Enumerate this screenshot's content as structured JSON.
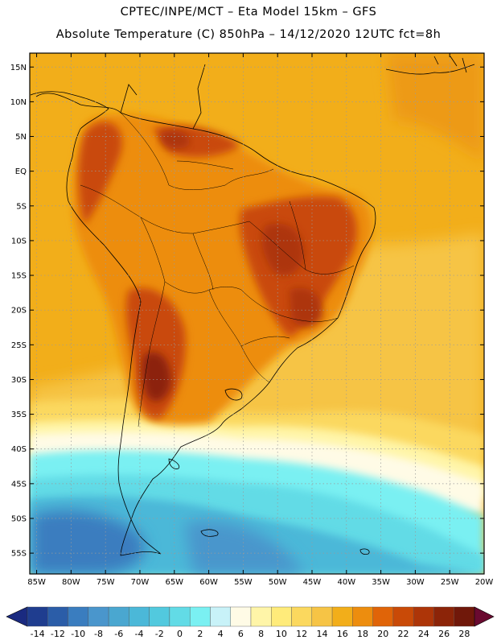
{
  "header": {
    "line1": "CPTEC/INPE/MCT –  Eta Model 15km – GFS",
    "line2": "Absolute Temperature (C) 850hPa – 14/12/2020 12UTC fct=8h"
  },
  "map": {
    "lat_range": [
      -58,
      17
    ],
    "lon_range": [
      -86,
      -20
    ],
    "lat_ticks": [
      "15N",
      "10N",
      "5N",
      "EQ",
      "5S",
      "10S",
      "15S",
      "20S",
      "25S",
      "30S",
      "35S",
      "40S",
      "45S",
      "50S",
      "55S"
    ],
    "lon_ticks": [
      "85W",
      "80W",
      "75W",
      "70W",
      "65W",
      "60W",
      "55W",
      "50W",
      "45W",
      "40W",
      "35W",
      "30W",
      "25W",
      "20W"
    ],
    "grid": "dotted"
  },
  "colorbar": {
    "labels": [
      "-14",
      "-12",
      "-10",
      "-8",
      "-6",
      "-4",
      "-2",
      "0",
      "2",
      "4",
      "6",
      "8",
      "10",
      "12",
      "14",
      "16",
      "18",
      "20",
      "22",
      "24",
      "26",
      "28"
    ],
    "colors": [
      "#1f3d8f",
      "#2b5da8",
      "#3a7dbf",
      "#4a96cc",
      "#4aa7d0",
      "#4bb8d8",
      "#52c9de",
      "#62dbe6",
      "#7af0f2",
      "#c8f2f8",
      "#fffbe6",
      "#fff5a8",
      "#ffeb7a",
      "#fbd85e",
      "#f6c445",
      "#f2ae1a",
      "#ed8d0e",
      "#e06408",
      "#c94a07",
      "#ad3508",
      "#8c2408",
      "#70180a"
    ]
  }
}
